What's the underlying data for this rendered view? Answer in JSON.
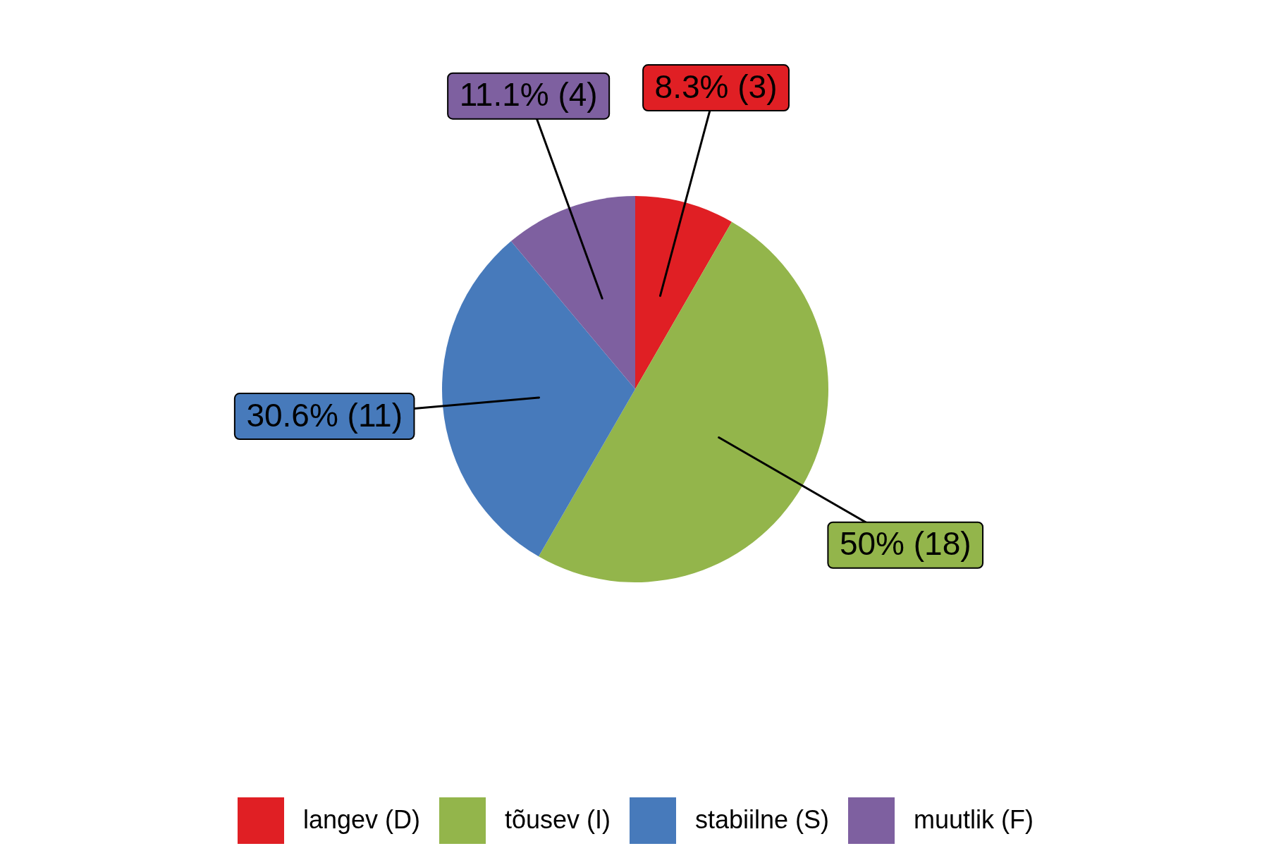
{
  "chart_data": {
    "type": "pie",
    "categories": [
      "langev (D)",
      "tõusev (I)",
      "stabiilne (S)",
      "muutlik (F)"
    ],
    "values": [
      3,
      18,
      11,
      4
    ],
    "colors": [
      "#e01f24",
      "#93b54b",
      "#477abb",
      "#7e60a0"
    ],
    "value_labels": [
      "8.3% (3)",
      "50% (18)",
      "30.6% (11)",
      "11.1% (4)"
    ],
    "legend": "bottom"
  }
}
